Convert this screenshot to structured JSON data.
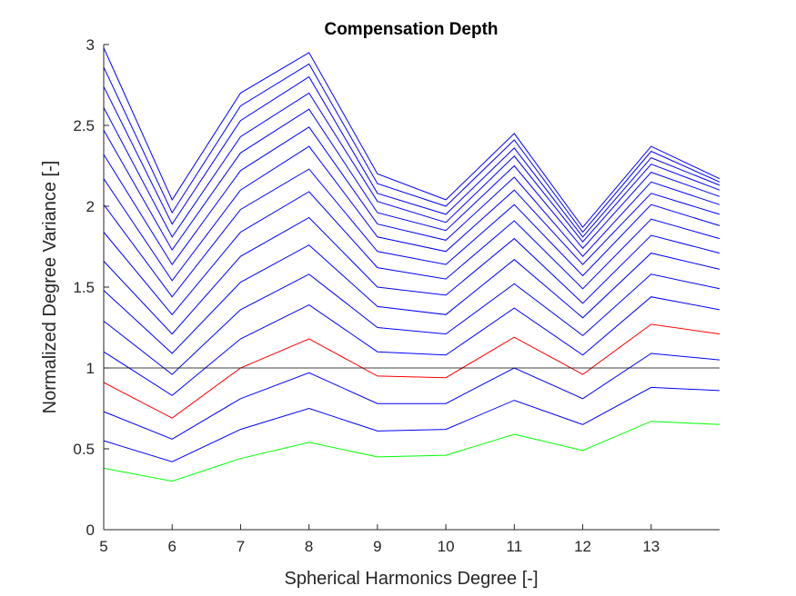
{
  "chart_data": {
    "type": "line",
    "title": "Compensation Depth",
    "xlabel": "Spherical Harmonics Degree [-]",
    "ylabel": "Normalized Degree Variance [-]",
    "xlim": [
      5,
      14
    ],
    "ylim": [
      0,
      3
    ],
    "xticks": [
      "5",
      "6",
      "7",
      "8",
      "9",
      "10",
      "11",
      "12",
      "13"
    ],
    "yticks": [
      "0",
      "0.5",
      "1",
      "1.5",
      "2",
      "2.5",
      "3"
    ],
    "grid": false,
    "legend": "none",
    "reference_line": {
      "y": 1,
      "color": "#000000"
    },
    "x": [
      5,
      6,
      7,
      8,
      9,
      10,
      11,
      12,
      13,
      14
    ],
    "series": [
      {
        "color": "#00ff00",
        "values": [
          0.38,
          0.3,
          0.44,
          0.54,
          0.45,
          0.46,
          0.59,
          0.49,
          0.67,
          0.65
        ]
      },
      {
        "color": "#0000ff",
        "values": [
          0.55,
          0.42,
          0.62,
          0.75,
          0.61,
          0.62,
          0.8,
          0.65,
          0.88,
          0.86
        ]
      },
      {
        "color": "#0000ff",
        "values": [
          0.73,
          0.56,
          0.81,
          0.97,
          0.78,
          0.78,
          1.0,
          0.81,
          1.09,
          1.05
        ]
      },
      {
        "color": "#ff0000",
        "values": [
          0.91,
          0.69,
          1.0,
          1.18,
          0.95,
          0.94,
          1.19,
          0.96,
          1.27,
          1.21
        ]
      },
      {
        "color": "#0000ff",
        "values": [
          1.1,
          0.83,
          1.18,
          1.39,
          1.1,
          1.08,
          1.37,
          1.08,
          1.44,
          1.36
        ]
      },
      {
        "color": "#0000ff",
        "values": [
          1.29,
          0.96,
          1.36,
          1.58,
          1.25,
          1.21,
          1.52,
          1.2,
          1.58,
          1.49
        ]
      },
      {
        "color": "#0000ff",
        "values": [
          1.48,
          1.09,
          1.53,
          1.76,
          1.38,
          1.33,
          1.67,
          1.31,
          1.71,
          1.61
        ]
      },
      {
        "color": "#0000ff",
        "values": [
          1.66,
          1.21,
          1.69,
          1.93,
          1.5,
          1.45,
          1.8,
          1.4,
          1.82,
          1.71
        ]
      },
      {
        "color": "#0000ff",
        "values": [
          1.84,
          1.33,
          1.84,
          2.09,
          1.62,
          1.55,
          1.91,
          1.49,
          1.92,
          1.8
        ]
      },
      {
        "color": "#0000ff",
        "values": [
          2.01,
          1.44,
          1.98,
          2.23,
          1.72,
          1.64,
          2.01,
          1.57,
          2.01,
          1.88
        ]
      },
      {
        "color": "#0000ff",
        "values": [
          2.17,
          1.54,
          2.1,
          2.37,
          1.81,
          1.72,
          2.1,
          1.64,
          2.08,
          1.95
        ]
      },
      {
        "color": "#0000ff",
        "values": [
          2.32,
          1.64,
          2.22,
          2.49,
          1.89,
          1.79,
          2.18,
          1.69,
          2.15,
          2.01
        ]
      },
      {
        "color": "#0000ff",
        "values": [
          2.47,
          1.73,
          2.33,
          2.6,
          1.96,
          1.85,
          2.25,
          1.74,
          2.21,
          2.06
        ]
      },
      {
        "color": "#0000ff",
        "values": [
          2.61,
          1.81,
          2.43,
          2.7,
          2.03,
          1.9,
          2.31,
          1.78,
          2.26,
          2.1
        ]
      },
      {
        "color": "#0000ff",
        "values": [
          2.74,
          1.89,
          2.53,
          2.8,
          2.08,
          1.95,
          2.36,
          1.81,
          2.3,
          2.13
        ]
      },
      {
        "color": "#0000ff",
        "values": [
          2.86,
          1.96,
          2.62,
          2.88,
          2.14,
          2.0,
          2.41,
          1.84,
          2.34,
          2.15
        ]
      },
      {
        "color": "#0000ff",
        "values": [
          2.98,
          2.04,
          2.7,
          2.95,
          2.2,
          2.04,
          2.45,
          1.87,
          2.37,
          2.17
        ]
      }
    ]
  }
}
